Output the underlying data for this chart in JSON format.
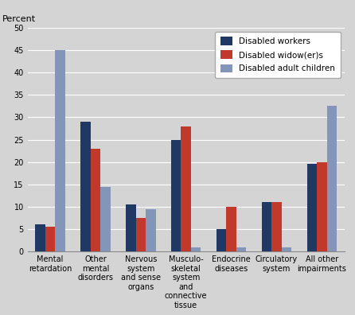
{
  "categories": [
    "Mental\nretardation",
    "Other\nmental\ndisorders",
    "Nervous\nsystem\nand sense\norgans",
    "Musculo-\nskeletal\nsystem\nand\nconnective\ntissue",
    "Endocrine\ndiseases",
    "Circulatory\nsystem",
    "All other\nimpairments"
  ],
  "series": {
    "Disabled workers": [
      6,
      29,
      10.5,
      25,
      5,
      11,
      19.5
    ],
    "Disabled widow(er)s": [
      5.5,
      23,
      7.5,
      28,
      10,
      11,
      20
    ],
    "Disabled adult children": [
      45,
      14.5,
      9.5,
      1,
      1,
      1,
      32.5
    ]
  },
  "colors": {
    "Disabled workers": "#1f3864",
    "Disabled widow(er)s": "#c0392b",
    "Disabled adult children": "#8395b8"
  },
  "percent_label": "Percent",
  "ylim": [
    0,
    50
  ],
  "yticks": [
    0,
    5,
    10,
    15,
    20,
    25,
    30,
    35,
    40,
    45,
    50
  ],
  "background_color": "#d4d4d4",
  "bar_width": 0.22,
  "legend_loc": "upper right",
  "tick_fontsize": 7,
  "legend_fontsize": 7.5
}
